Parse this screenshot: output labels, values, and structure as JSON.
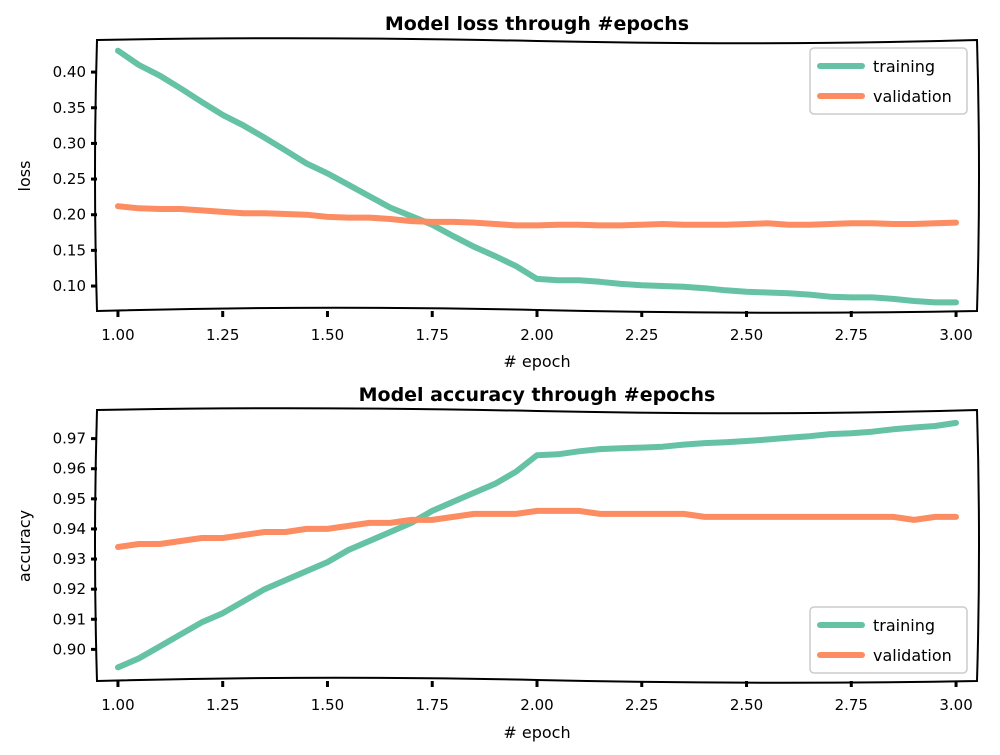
{
  "colors": {
    "training": "#66c2a5",
    "validation": "#fc8d62"
  },
  "chart_data": [
    {
      "type": "line",
      "title": "Model loss through #epochs",
      "xlabel": "# epoch",
      "ylabel": "loss",
      "xlim": [
        0.95,
        3.05
      ],
      "ylim": [
        0.065,
        0.445
      ],
      "xticks": [
        1.0,
        1.25,
        1.5,
        1.75,
        2.0,
        2.25,
        2.5,
        2.75,
        3.0
      ],
      "xtick_labels": [
        "1.00",
        "1.25",
        "1.50",
        "1.75",
        "2.00",
        "2.25",
        "2.50",
        "2.75",
        "3.00"
      ],
      "yticks": [
        0.1,
        0.15,
        0.2,
        0.25,
        0.3,
        0.35,
        0.4
      ],
      "ytick_labels": [
        "0.10",
        "0.15",
        "0.20",
        "0.25",
        "0.30",
        "0.35",
        "0.40"
      ],
      "legend_position": "top-right",
      "grid": false,
      "x": [
        1.0,
        1.05,
        1.1,
        1.15,
        1.2,
        1.25,
        1.3,
        1.35,
        1.4,
        1.45,
        1.5,
        1.55,
        1.6,
        1.65,
        1.7,
        1.75,
        1.8,
        1.85,
        1.9,
        1.95,
        2.0,
        2.05,
        2.1,
        2.15,
        2.2,
        2.25,
        2.3,
        2.35,
        2.4,
        2.45,
        2.5,
        2.55,
        2.6,
        2.65,
        2.7,
        2.75,
        2.8,
        2.85,
        2.9,
        2.95,
        3.0
      ],
      "series": [
        {
          "name": "training",
          "values": [
            0.43,
            0.41,
            0.395,
            0.377,
            0.358,
            0.34,
            0.325,
            0.308,
            0.29,
            0.272,
            0.258,
            0.242,
            0.226,
            0.21,
            0.198,
            0.186,
            0.17,
            0.155,
            0.142,
            0.128,
            0.11,
            0.108,
            0.108,
            0.106,
            0.103,
            0.101,
            0.1,
            0.099,
            0.097,
            0.094,
            0.092,
            0.091,
            0.09,
            0.088,
            0.085,
            0.084,
            0.084,
            0.082,
            0.079,
            0.077,
            0.077
          ]
        },
        {
          "name": "validation",
          "values": [
            0.212,
            0.209,
            0.208,
            0.208,
            0.206,
            0.204,
            0.202,
            0.202,
            0.201,
            0.2,
            0.197,
            0.196,
            0.196,
            0.194,
            0.191,
            0.19,
            0.19,
            0.189,
            0.187,
            0.185,
            0.185,
            0.186,
            0.186,
            0.185,
            0.185,
            0.186,
            0.187,
            0.186,
            0.186,
            0.186,
            0.187,
            0.188,
            0.186,
            0.186,
            0.187,
            0.188,
            0.188,
            0.187,
            0.187,
            0.188,
            0.189
          ]
        }
      ]
    },
    {
      "type": "line",
      "title": "Model accuracy through #epochs",
      "xlabel": "# epoch",
      "ylabel": "accuracy",
      "xlim": [
        0.95,
        3.05
      ],
      "ylim": [
        0.8895,
        0.9795
      ],
      "xticks": [
        1.0,
        1.25,
        1.5,
        1.75,
        2.0,
        2.25,
        2.5,
        2.75,
        3.0
      ],
      "xtick_labels": [
        "1.00",
        "1.25",
        "1.50",
        "1.75",
        "2.00",
        "2.25",
        "2.50",
        "2.75",
        "3.00"
      ],
      "yticks": [
        0.9,
        0.91,
        0.92,
        0.93,
        0.94,
        0.95,
        0.96,
        0.97
      ],
      "ytick_labels": [
        "0.90",
        "0.91",
        "0.92",
        "0.93",
        "0.94",
        "0.95",
        "0.96",
        "0.97"
      ],
      "legend_position": "bottom-right",
      "grid": false,
      "x": [
        1.0,
        1.05,
        1.1,
        1.15,
        1.2,
        1.25,
        1.3,
        1.35,
        1.4,
        1.45,
        1.5,
        1.55,
        1.6,
        1.65,
        1.7,
        1.75,
        1.8,
        1.85,
        1.9,
        1.95,
        2.0,
        2.05,
        2.1,
        2.15,
        2.2,
        2.25,
        2.3,
        2.35,
        2.4,
        2.45,
        2.5,
        2.55,
        2.6,
        2.65,
        2.7,
        2.75,
        2.8,
        2.85,
        2.9,
        2.95,
        3.0
      ],
      "series": [
        {
          "name": "training",
          "values": [
            0.894,
            0.897,
            0.901,
            0.905,
            0.909,
            0.912,
            0.916,
            0.92,
            0.923,
            0.926,
            0.929,
            0.933,
            0.936,
            0.939,
            0.942,
            0.946,
            0.949,
            0.952,
            0.955,
            0.959,
            0.9645,
            0.9648,
            0.9658,
            0.9665,
            0.9668,
            0.967,
            0.9673,
            0.968,
            0.9685,
            0.9688,
            0.9692,
            0.9697,
            0.9703,
            0.9708,
            0.9715,
            0.9718,
            0.9723,
            0.9731,
            0.9737,
            0.9742,
            0.9752
          ]
        },
        {
          "name": "validation",
          "values": [
            0.934,
            0.935,
            0.935,
            0.936,
            0.937,
            0.937,
            0.938,
            0.939,
            0.939,
            0.94,
            0.94,
            0.941,
            0.942,
            0.942,
            0.943,
            0.943,
            0.944,
            0.945,
            0.945,
            0.945,
            0.946,
            0.946,
            0.946,
            0.945,
            0.945,
            0.945,
            0.945,
            0.945,
            0.944,
            0.944,
            0.944,
            0.944,
            0.944,
            0.944,
            0.944,
            0.944,
            0.944,
            0.944,
            0.943,
            0.944,
            0.944
          ]
        }
      ]
    }
  ]
}
